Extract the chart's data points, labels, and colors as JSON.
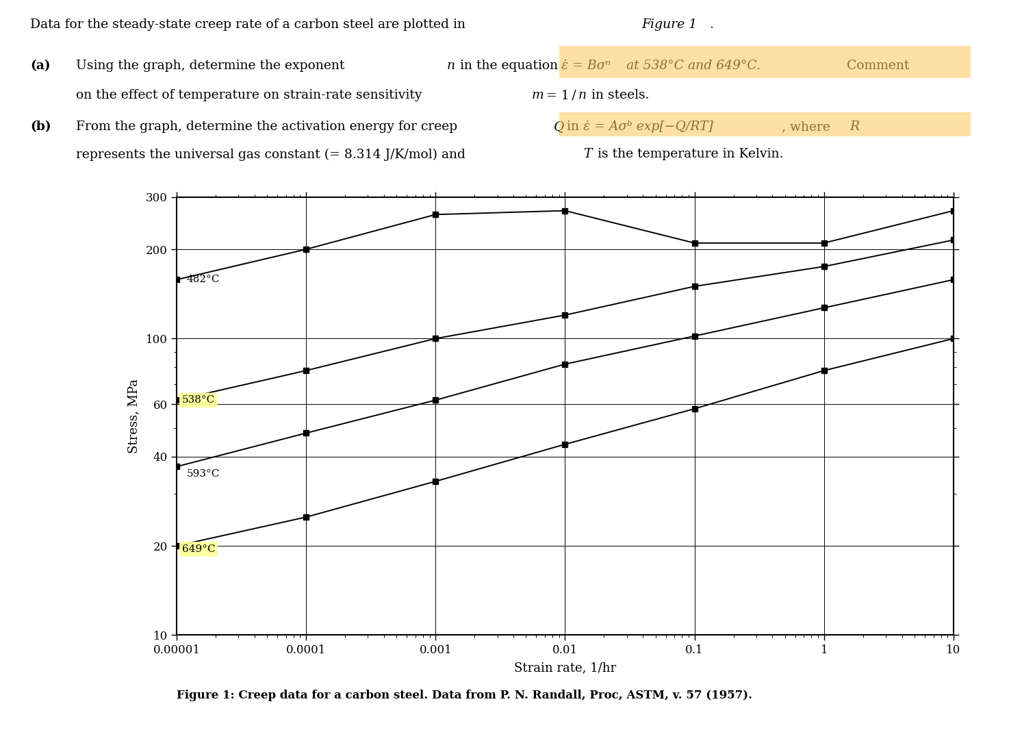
{
  "xlabel": "Strain rate, 1/hr",
  "ylabel": "Stress, MPa",
  "fig_caption": "Figure 1: Creep data for a carbon steel. Data from P. N. Randall, Proc, ASTM, v. 57 (1957).",
  "xmin": 1e-05,
  "xmax": 10,
  "ymin": 10,
  "ymax": 300,
  "xticks": [
    1e-05,
    0.0001,
    0.001,
    0.01,
    0.1,
    1,
    10
  ],
  "xtick_labels": [
    "0.00001",
    "0.0001",
    "0.001",
    "0.01",
    "0.1",
    "1",
    "10"
  ],
  "yticks": [
    10,
    20,
    40,
    60,
    100,
    200,
    300
  ],
  "ytick_labels": [
    "10",
    "20",
    "40",
    "60",
    "100",
    "200",
    "300"
  ],
  "series": [
    {
      "label": "482°C",
      "highlight": false,
      "x": [
        1e-05,
        0.0001,
        0.001,
        0.01,
        0.1,
        1,
        10
      ],
      "y": [
        158,
        200,
        262,
        270,
        210,
        210,
        270
      ]
    },
    {
      "label": "538°C",
      "highlight": true,
      "x": [
        1e-05,
        0.0001,
        0.001,
        0.01,
        0.1,
        1,
        10
      ],
      "y": [
        62,
        78,
        100,
        120,
        150,
        175,
        215
      ]
    },
    {
      "label": "593°C",
      "highlight": false,
      "x": [
        1e-05,
        0.0001,
        0.001,
        0.01,
        0.1,
        1,
        10
      ],
      "y": [
        37,
        48,
        62,
        82,
        102,
        127,
        158
      ]
    },
    {
      "label": "649°C",
      "highlight": true,
      "x": [
        1e-05,
        0.0001,
        0.001,
        0.01,
        0.1,
        1,
        10
      ],
      "y": [
        20,
        25,
        33,
        44,
        58,
        78,
        100
      ]
    }
  ],
  "background_color": "#ffffff",
  "line_color": "#000000",
  "marker": "s",
  "marker_size": 6,
  "line_width": 1.4,
  "highlight_color": "#ffff99"
}
